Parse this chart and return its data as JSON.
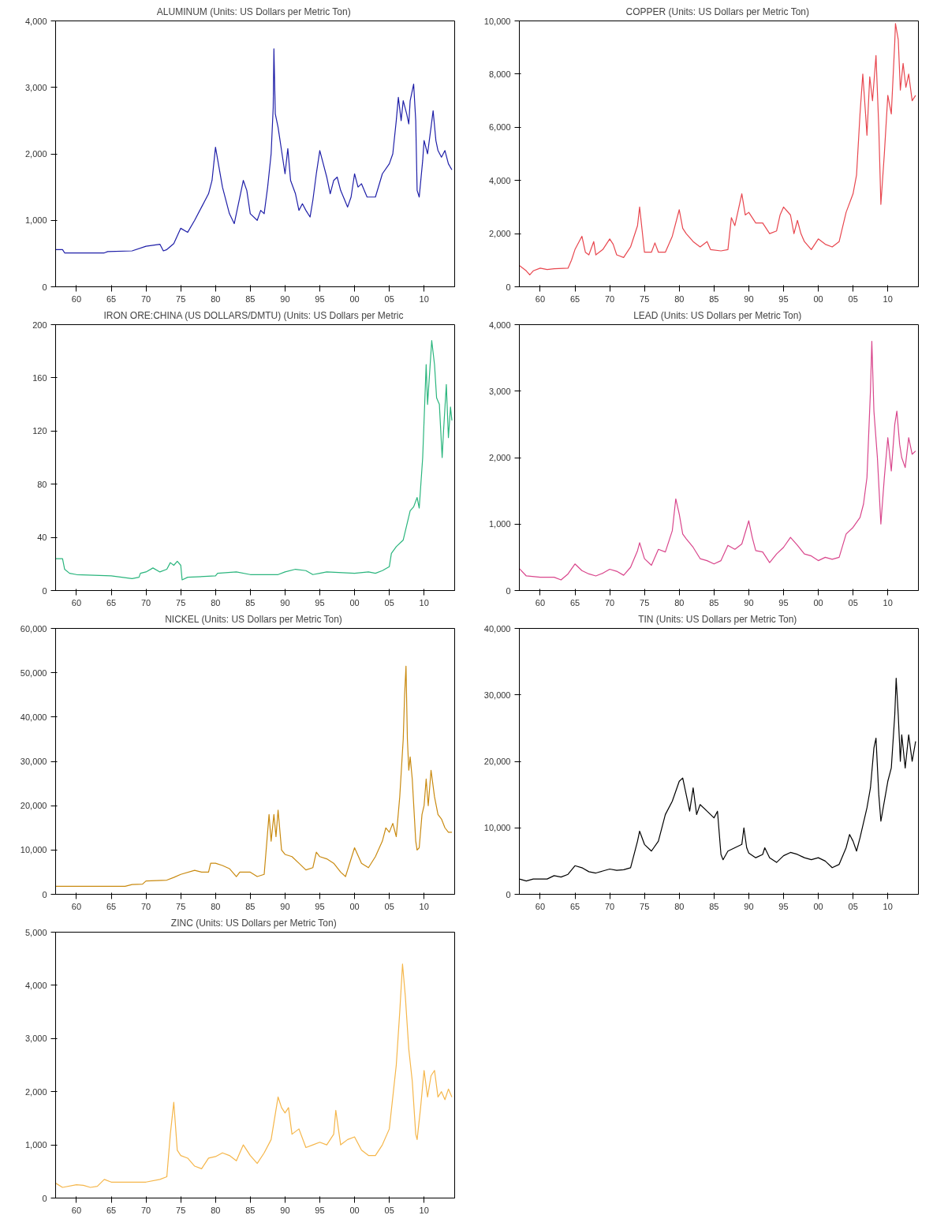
{
  "chart_data": [
    {
      "type": "line",
      "title": "ALUMINUM  (Units: US Dollars per Metric Ton)",
      "color": "#1f1fa8",
      "grid": false,
      "xlim": [
        1957,
        2014.4
      ],
      "ylim": [
        0,
        4000
      ],
      "xticks": [
        {
          "value": 1960,
          "label": "60"
        },
        {
          "value": 1965,
          "label": "65"
        },
        {
          "value": 1970,
          "label": "70"
        },
        {
          "value": 1975,
          "label": "75"
        },
        {
          "value": 1980,
          "label": "80"
        },
        {
          "value": 1985,
          "label": "85"
        },
        {
          "value": 1990,
          "label": "90"
        },
        {
          "value": 1995,
          "label": "95"
        },
        {
          "value": 2000,
          "label": "00"
        },
        {
          "value": 2005,
          "label": "05"
        },
        {
          "value": 2010,
          "label": "10"
        }
      ],
      "yticks": [
        0,
        {
          "value": 1000,
          "label": "1,000"
        },
        {
          "value": 2000,
          "label": "2,000"
        },
        {
          "value": 3000,
          "label": "3,000"
        },
        {
          "value": 4000,
          "label": "4,000"
        }
      ],
      "x": [
        1957,
        1958,
        1958.3,
        1964,
        1964.5,
        1968,
        1970,
        1972,
        1972.5,
        1973,
        1974,
        1975,
        1976,
        1977,
        1978,
        1979,
        1979.5,
        1980,
        1980.5,
        1981,
        1982,
        1982.7,
        1983.5,
        1984,
        1984.5,
        1985,
        1986,
        1986.5,
        1987,
        1987.5,
        1988,
        1988.3,
        1988.4,
        1988.6,
        1989,
        1990,
        1990.4,
        1990.8,
        1991.5,
        1992,
        1992.5,
        1993,
        1993.6,
        1994,
        1994.5,
        1995,
        1995.5,
        1996,
        1996.5,
        1997,
        1997.5,
        1998,
        1999,
        1999.5,
        2000,
        2000.5,
        2001,
        2001.8,
        2002.5,
        2003,
        2004,
        2005,
        2005.5,
        2006,
        2006.3,
        2006.7,
        2007,
        2007.5,
        2007.8,
        2008,
        2008.5,
        2008.8,
        2009,
        2009.3,
        2009.8,
        2010,
        2010.5,
        2011,
        2011.3,
        2011.7,
        2012,
        2012.5,
        2013,
        2013.5,
        2014
      ],
      "values": [
        560,
        560,
        510,
        510,
        530,
        540,
        610,
        640,
        540,
        560,
        650,
        880,
        820,
        1000,
        1200,
        1400,
        1600,
        2100,
        1800,
        1500,
        1100,
        950,
        1350,
        1600,
        1450,
        1100,
        1000,
        1150,
        1100,
        1500,
        2000,
        2700,
        3580,
        2600,
        2400,
        1700,
        2080,
        1600,
        1400,
        1150,
        1250,
        1150,
        1050,
        1300,
        1700,
        2050,
        1850,
        1650,
        1400,
        1600,
        1650,
        1450,
        1200,
        1350,
        1700,
        1500,
        1550,
        1350,
        1350,
        1350,
        1700,
        1850,
        2000,
        2500,
        2850,
        2500,
        2800,
        2600,
        2450,
        2800,
        3050,
        2500,
        1450,
        1350,
        1900,
        2200,
        2000,
        2400,
        2650,
        2200,
        2050,
        1950,
        2050,
        1850,
        1760
      ]
    },
    {
      "type": "line",
      "title": "COPPER  (Units: US Dollars per Metric Ton)",
      "color": "#e8474f",
      "grid": false,
      "xlim": [
        1957,
        2014.4
      ],
      "ylim": [
        0,
        10000
      ],
      "xticks": [
        {
          "value": 1960,
          "label": "60"
        },
        {
          "value": 1965,
          "label": "65"
        },
        {
          "value": 1970,
          "label": "70"
        },
        {
          "value": 1975,
          "label": "75"
        },
        {
          "value": 1980,
          "label": "80"
        },
        {
          "value": 1985,
          "label": "85"
        },
        {
          "value": 1990,
          "label": "90"
        },
        {
          "value": 1995,
          "label": "95"
        },
        {
          "value": 2000,
          "label": "00"
        },
        {
          "value": 2005,
          "label": "05"
        },
        {
          "value": 2010,
          "label": "10"
        }
      ],
      "yticks": [
        0,
        {
          "value": 2000,
          "label": "2,000"
        },
        {
          "value": 4000,
          "label": "4,000"
        },
        {
          "value": 6000,
          "label": "6,000"
        },
        {
          "value": 8000,
          "label": "8,000"
        },
        {
          "value": 10000,
          "label": "10,000"
        }
      ],
      "x": [
        1957,
        1958,
        1958.5,
        1959,
        1960,
        1961,
        1962,
        1964,
        1964.5,
        1965,
        1966,
        1966.5,
        1967,
        1967.7,
        1968,
        1969,
        1970,
        1970.5,
        1971,
        1972,
        1973,
        1974,
        1974.3,
        1975,
        1976,
        1976.5,
        1977,
        1978,
        1979,
        1980,
        1980.5,
        1981,
        1982,
        1983,
        1984,
        1984.5,
        1986,
        1987,
        1987.5,
        1988,
        1988.5,
        1989,
        1989.5,
        1990,
        1991,
        1992,
        1993,
        1994,
        1994.5,
        1995,
        1996,
        1996.5,
        1997,
        1997.5,
        1998,
        1999,
        2000,
        2001,
        2002,
        2003,
        2004,
        2005,
        2005.5,
        2006,
        2006.4,
        2006.8,
        2007,
        2007.4,
        2007.8,
        2008.3,
        2008.7,
        2009,
        2009.5,
        2010,
        2010.5,
        2011,
        2011.1,
        2011.5,
        2011.8,
        2012.2,
        2012.6,
        2013,
        2013.5,
        2014
      ],
      "values": [
        800,
        600,
        450,
        600,
        700,
        650,
        680,
        700,
        1000,
        1400,
        1900,
        1300,
        1200,
        1700,
        1200,
        1400,
        1800,
        1600,
        1200,
        1100,
        1500,
        2300,
        3000,
        1300,
        1300,
        1650,
        1300,
        1300,
        1900,
        2900,
        2200,
        2000,
        1700,
        1500,
        1700,
        1400,
        1350,
        1400,
        2600,
        2300,
        2900,
        3500,
        2700,
        2800,
        2400,
        2400,
        2000,
        2100,
        2700,
        3000,
        2700,
        2000,
        2500,
        2000,
        1700,
        1400,
        1800,
        1600,
        1500,
        1700,
        2800,
        3500,
        4200,
        6500,
        8000,
        6500,
        5700,
        7900,
        7000,
        8700,
        6000,
        3100,
        5000,
        7200,
        6500,
        9200,
        9900,
        9300,
        7400,
        8400,
        7500,
        8000,
        7000,
        7200
      ]
    },
    {
      "type": "line",
      "title": "IRON ORE:CHINA (US DOLLARS/DMTU)  (Units: US Dollars per Metric",
      "color": "#2ab57d",
      "grid": false,
      "xlim": [
        1957,
        2014.4
      ],
      "ylim": [
        0,
        200
      ],
      "xticks": [
        {
          "value": 1960,
          "label": "60"
        },
        {
          "value": 1965,
          "label": "65"
        },
        {
          "value": 1970,
          "label": "70"
        },
        {
          "value": 1975,
          "label": "75"
        },
        {
          "value": 1980,
          "label": "80"
        },
        {
          "value": 1985,
          "label": "85"
        },
        {
          "value": 1990,
          "label": "90"
        },
        {
          "value": 1995,
          "label": "95"
        },
        {
          "value": 2000,
          "label": "00"
        },
        {
          "value": 2005,
          "label": "05"
        },
        {
          "value": 2010,
          "label": "10"
        }
      ],
      "yticks": [
        0,
        40,
        80,
        120,
        160,
        200
      ],
      "x": [
        1957,
        1958,
        1958.3,
        1959,
        1960,
        1965,
        1968,
        1969,
        1969.2,
        1970,
        1971,
        1972,
        1973,
        1973.5,
        1974,
        1974.5,
        1975,
        1975.2,
        1976,
        1980,
        1980.3,
        1983,
        1985,
        1989,
        1990,
        1991.5,
        1993,
        1994,
        1995,
        1996,
        2000,
        2002,
        2003,
        2004,
        2005,
        2005.3,
        2006,
        2007,
        2008,
        2008.5,
        2009,
        2009.3,
        2009.8,
        2010.3,
        2010.5,
        2011,
        2011.1,
        2011.5,
        2011.8,
        2012.2,
        2012.6,
        2012.8,
        2013.2,
        2013.5,
        2013.8,
        2014
      ],
      "values": [
        24,
        24,
        16,
        13,
        12,
        11,
        9,
        10,
        13,
        14,
        17,
        14,
        16,
        21,
        19,
        22,
        19,
        8,
        10,
        11,
        13,
        14,
        12,
        12,
        14,
        16,
        15,
        12,
        13,
        14,
        13,
        14,
        13,
        15,
        18,
        28,
        33,
        38,
        60,
        63,
        70,
        62,
        100,
        170,
        140,
        180,
        188,
        170,
        145,
        140,
        100,
        120,
        155,
        115,
        138,
        128
      ]
    },
    {
      "type": "line",
      "title": "LEAD  (Units: US Dollars per Metric Ton)",
      "color": "#d9468c",
      "grid": false,
      "xlim": [
        1957,
        2014.4
      ],
      "ylim": [
        0,
        4000
      ],
      "xticks": [
        {
          "value": 1960,
          "label": "60"
        },
        {
          "value": 1965,
          "label": "65"
        },
        {
          "value": 1970,
          "label": "70"
        },
        {
          "value": 1975,
          "label": "75"
        },
        {
          "value": 1980,
          "label": "80"
        },
        {
          "value": 1985,
          "label": "85"
        },
        {
          "value": 1990,
          "label": "90"
        },
        {
          "value": 1995,
          "label": "95"
        },
        {
          "value": 2000,
          "label": "00"
        },
        {
          "value": 2005,
          "label": "05"
        },
        {
          "value": 2010,
          "label": "10"
        }
      ],
      "yticks": [
        0,
        {
          "value": 1000,
          "label": "1,000"
        },
        {
          "value": 2000,
          "label": "2,000"
        },
        {
          "value": 3000,
          "label": "3,000"
        },
        {
          "value": 4000,
          "label": "4,000"
        }
      ],
      "x": [
        1957,
        1958,
        1960,
        1962,
        1963,
        1964,
        1965,
        1966,
        1967,
        1968,
        1969,
        1970,
        1971,
        1972,
        1973,
        1974,
        1974.3,
        1975,
        1976,
        1977,
        1978,
        1979,
        1979.5,
        1980,
        1980.5,
        1981,
        1982,
        1983,
        1984,
        1985,
        1986,
        1987,
        1988,
        1989,
        1990,
        1990.5,
        1991,
        1992,
        1993,
        1994,
        1995,
        1996,
        1997,
        1998,
        1999,
        2000,
        2001,
        2002,
        2003,
        2004,
        2005,
        2006,
        2006.5,
        2007,
        2007.5,
        2007.7,
        2008,
        2008.5,
        2009,
        2009.5,
        2010,
        2010.5,
        2011,
        2011.3,
        2011.7,
        2012,
        2012.5,
        2013,
        2013.5,
        2014
      ],
      "values": [
        330,
        220,
        200,
        200,
        160,
        250,
        400,
        300,
        250,
        220,
        260,
        320,
        290,
        230,
        350,
        600,
        720,
        480,
        380,
        620,
        580,
        900,
        1380,
        1150,
        850,
        780,
        650,
        480,
        450,
        400,
        450,
        680,
        620,
        700,
        1050,
        800,
        600,
        580,
        420,
        550,
        650,
        800,
        680,
        550,
        520,
        450,
        500,
        470,
        500,
        850,
        950,
        1100,
        1300,
        1700,
        3000,
        3750,
        2700,
        2000,
        1000,
        1700,
        2300,
        1800,
        2500,
        2700,
        2200,
        2000,
        1850,
        2300,
        2050,
        2100
      ]
    },
    {
      "type": "line",
      "title": "NICKEL  (Units: US Dollars per Metric Ton)",
      "color": "#c98a10",
      "grid": false,
      "xlim": [
        1957,
        2014.4
      ],
      "ylim": [
        0,
        60000
      ],
      "xticks": [
        {
          "value": 1960,
          "label": "60"
        },
        {
          "value": 1965,
          "label": "65"
        },
        {
          "value": 1970,
          "label": "70"
        },
        {
          "value": 1975,
          "label": "75"
        },
        {
          "value": 1980,
          "label": "80"
        },
        {
          "value": 1985,
          "label": "85"
        },
        {
          "value": 1990,
          "label": "90"
        },
        {
          "value": 1995,
          "label": "95"
        },
        {
          "value": 2000,
          "label": "00"
        },
        {
          "value": 2005,
          "label": "05"
        },
        {
          "value": 2010,
          "label": "10"
        }
      ],
      "yticks": [
        0,
        {
          "value": 10000,
          "label": "10,000"
        },
        {
          "value": 20000,
          "label": "20,000"
        },
        {
          "value": 30000,
          "label": "30,000"
        },
        {
          "value": 40000,
          "label": "40,000"
        },
        {
          "value": 50000,
          "label": "50,000"
        },
        {
          "value": 60000,
          "label": "60,000"
        }
      ],
      "x": [
        1957,
        1967,
        1968,
        1969.5,
        1970,
        1973,
        1974,
        1975,
        1977,
        1978,
        1979,
        1979.3,
        1980,
        1981,
        1982,
        1983,
        1983.5,
        1984,
        1985,
        1986,
        1987,
        1987.7,
        1988,
        1988.4,
        1988.7,
        1989,
        1989.5,
        1990,
        1991,
        1992,
        1993,
        1994,
        1994.5,
        1995,
        1996,
        1997,
        1998,
        1998.7,
        1999,
        2000,
        2001,
        2002,
        2003,
        2004,
        2004.5,
        2005,
        2005.5,
        2006,
        2006.5,
        2007,
        2007.2,
        2007.4,
        2007.6,
        2007.8,
        2008,
        2008.3,
        2008.8,
        2009,
        2009.3,
        2009.7,
        2010,
        2010.3,
        2010.6,
        2011,
        2011.5,
        2012,
        2012.5,
        2013,
        2013.5,
        2014
      ],
      "values": [
        1800,
        1800,
        2200,
        2300,
        3000,
        3200,
        3800,
        4500,
        5400,
        5000,
        5000,
        7000,
        7000,
        6500,
        5800,
        4000,
        5000,
        5000,
        5000,
        4000,
        4500,
        18000,
        12000,
        18000,
        13000,
        19000,
        10000,
        9000,
        8500,
        7000,
        5500,
        6000,
        9500,
        8500,
        8000,
        7000,
        5000,
        4000,
        5500,
        10500,
        7000,
        6000,
        8500,
        12000,
        15000,
        14000,
        16000,
        13000,
        22000,
        35000,
        45000,
        51500,
        35000,
        28000,
        31000,
        26000,
        12000,
        10000,
        10500,
        18000,
        20000,
        26000,
        20000,
        28000,
        22000,
        18000,
        17000,
        15000,
        14000,
        14000
      ]
    },
    {
      "type": "line",
      "title": "TIN  (Units: US Dollars per Metric Ton)",
      "color": "#000000",
      "grid": false,
      "xlim": [
        1957,
        2014.4
      ],
      "ylim": [
        0,
        40000
      ],
      "xticks": [
        {
          "value": 1960,
          "label": "60"
        },
        {
          "value": 1965,
          "label": "65"
        },
        {
          "value": 1970,
          "label": "70"
        },
        {
          "value": 1975,
          "label": "75"
        },
        {
          "value": 1980,
          "label": "80"
        },
        {
          "value": 1985,
          "label": "85"
        },
        {
          "value": 1990,
          "label": "90"
        },
        {
          "value": 1995,
          "label": "95"
        },
        {
          "value": 2000,
          "label": "00"
        },
        {
          "value": 2005,
          "label": "05"
        },
        {
          "value": 2010,
          "label": "10"
        }
      ],
      "yticks": [
        0,
        {
          "value": 10000,
          "label": "10,000"
        },
        {
          "value": 20000,
          "label": "20,000"
        },
        {
          "value": 30000,
          "label": "30,000"
        },
        {
          "value": 40000,
          "label": "40,000"
        }
      ],
      "x": [
        1957,
        1958,
        1959,
        1961,
        1962,
        1963,
        1964,
        1965,
        1966,
        1967,
        1968,
        1969,
        1970,
        1971,
        1972,
        1973,
        1974,
        1974.3,
        1975,
        1976,
        1977,
        1978,
        1979,
        1980,
        1980.5,
        1981,
        1981.5,
        1982,
        1982.5,
        1983,
        1984,
        1985,
        1985.5,
        1986,
        1986.3,
        1987,
        1988,
        1989,
        1989.3,
        1989.7,
        1990,
        1991,
        1992,
        1992.3,
        1993,
        1994,
        1995,
        1996,
        1997,
        1998,
        1999,
        2000,
        2001,
        2002,
        2003,
        2004,
        2004.5,
        2005,
        2005.5,
        2006,
        2007,
        2007.5,
        2008,
        2008.3,
        2008.7,
        2009,
        2009.5,
        2010,
        2010.5,
        2011,
        2011.2,
        2011.5,
        2011.8,
        2012,
        2012.5,
        2013,
        2013.5,
        2014
      ],
      "values": [
        2300,
        2000,
        2300,
        2300,
        2800,
        2600,
        3000,
        4300,
        4000,
        3400,
        3200,
        3500,
        3800,
        3600,
        3700,
        4000,
        8000,
        9500,
        7500,
        6500,
        8000,
        12000,
        14000,
        17000,
        17500,
        15000,
        12500,
        16000,
        12000,
        13500,
        12500,
        11500,
        12500,
        6000,
        5200,
        6500,
        7000,
        7500,
        10000,
        7000,
        6200,
        5500,
        6000,
        7000,
        5500,
        4800,
        5800,
        6300,
        6000,
        5500,
        5200,
        5500,
        5000,
        4000,
        4500,
        7000,
        9000,
        8000,
        6500,
        8500,
        13000,
        16000,
        22000,
        23500,
        15000,
        11000,
        14000,
        17000,
        19000,
        27000,
        32500,
        27000,
        20000,
        24000,
        19000,
        24000,
        20000,
        23000
      ]
    },
    {
      "type": "line",
      "title": "ZINC  (Units: US Dollars per Metric Ton)",
      "color": "#f5b64a",
      "grid": false,
      "xlim": [
        1957,
        2014.4
      ],
      "ylim": [
        0,
        5000
      ],
      "xticks": [
        {
          "value": 1960,
          "label": "60"
        },
        {
          "value": 1965,
          "label": "65"
        },
        {
          "value": 1970,
          "label": "70"
        },
        {
          "value": 1975,
          "label": "75"
        },
        {
          "value": 1980,
          "label": "80"
        },
        {
          "value": 1985,
          "label": "85"
        },
        {
          "value": 1990,
          "label": "90"
        },
        {
          "value": 1995,
          "label": "95"
        },
        {
          "value": 2000,
          "label": "00"
        },
        {
          "value": 2005,
          "label": "05"
        },
        {
          "value": 2010,
          "label": "10"
        }
      ],
      "yticks": [
        0,
        {
          "value": 1000,
          "label": "1,000"
        },
        {
          "value": 2000,
          "label": "2,000"
        },
        {
          "value": 3000,
          "label": "3,000"
        },
        {
          "value": 4000,
          "label": "4,000"
        },
        {
          "value": 5000,
          "label": "5,000"
        }
      ],
      "x": [
        1957,
        1958,
        1960,
        1961,
        1962,
        1963,
        1964,
        1965,
        1970,
        1972,
        1973,
        1973.5,
        1974,
        1974.5,
        1975,
        1976,
        1977,
        1978,
        1979,
        1980,
        1981,
        1982,
        1983,
        1984,
        1985,
        1986,
        1987,
        1988,
        1989,
        1989.5,
        1990,
        1990.5,
        1991,
        1992,
        1993,
        1994,
        1995,
        1996,
        1997,
        1997.3,
        1998,
        1999,
        2000,
        2001,
        2002,
        2003,
        2004,
        2005,
        2006,
        2006.5,
        2006.9,
        2007.3,
        2007.8,
        2008.3,
        2008.8,
        2009,
        2009.5,
        2010,
        2010.5,
        2011,
        2011.5,
        2012,
        2012.5,
        2013,
        2013.5,
        2014
      ],
      "values": [
        280,
        200,
        250,
        240,
        200,
        220,
        350,
        300,
        300,
        350,
        400,
        1200,
        1800,
        900,
        800,
        750,
        600,
        550,
        750,
        780,
        850,
        800,
        700,
        1000,
        800,
        650,
        850,
        1100,
        1900,
        1700,
        1600,
        1700,
        1200,
        1300,
        950,
        1000,
        1050,
        1000,
        1200,
        1650,
        1000,
        1100,
        1150,
        900,
        800,
        800,
        1000,
        1300,
        2500,
        3500,
        4400,
        3800,
        2800,
        2200,
        1200,
        1100,
        1700,
        2400,
        1900,
        2300,
        2400,
        1900,
        2000,
        1850,
        2050,
        1900
      ]
    }
  ]
}
